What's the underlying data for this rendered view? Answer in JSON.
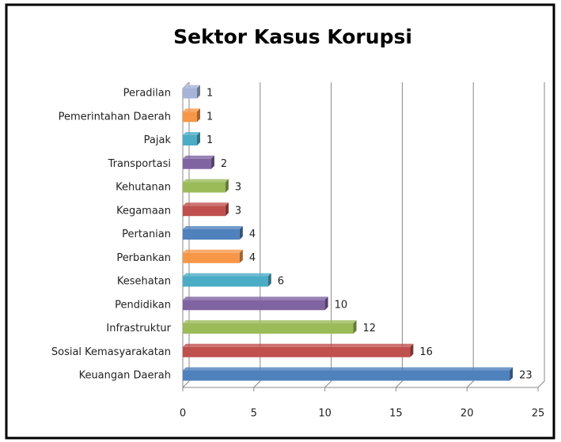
{
  "chart_data": {
    "type": "hbar",
    "title": "Sektor Kasus  Korupsi",
    "categories": [
      "Peradilan",
      "Pemerintahan Daerah",
      "Pajak",
      "Transportasi",
      "Kehutanan",
      "Kegamaan",
      "Pertanian",
      "Perbankan",
      "Kesehatan",
      "Pendidikan",
      "Infrastruktur",
      "Sosial Kemasyarakatan",
      "Keuangan Daerah"
    ],
    "values": [
      1,
      1,
      1,
      2,
      3,
      3,
      4,
      4,
      6,
      10,
      12,
      16,
      23
    ],
    "colors": [
      "#a5b4d8",
      "#f79646",
      "#4bacc6",
      "#8064a2",
      "#9bbb59",
      "#c0504d",
      "#4f81bd",
      "#f79646",
      "#4bacc6",
      "#8064a2",
      "#9bbb59",
      "#c0504d",
      "#4f81bd"
    ],
    "xlim": [
      0,
      25
    ],
    "xticks": [
      0,
      5,
      10,
      15,
      20,
      25
    ],
    "grid": true
  }
}
